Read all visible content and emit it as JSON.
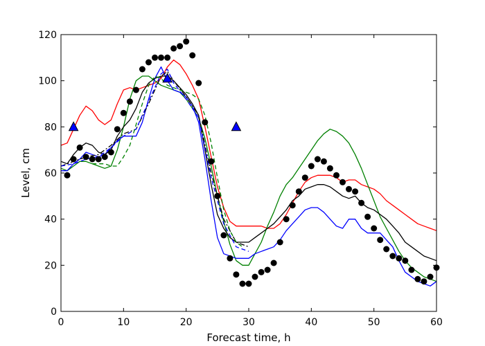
{
  "chart_data": {
    "type": "line",
    "xlabel": "Forecast time, h",
    "ylabel": "Level, cm",
    "xlim": [
      0,
      60
    ],
    "ylim": [
      0,
      120
    ],
    "xticks": [
      "0",
      "10",
      "20",
      "30",
      "40",
      "50",
      "60"
    ],
    "yticks": [
      "0",
      "20",
      "40",
      "60",
      "80",
      "100",
      "120"
    ],
    "grid": false,
    "series": [
      {
        "color": "#ff0000",
        "style": "solid",
        "x": [
          0,
          1,
          2,
          3,
          4,
          5,
          6,
          7,
          8,
          9,
          10,
          11,
          12,
          13,
          14,
          15,
          16,
          17,
          18,
          19,
          20,
          21,
          22,
          23,
          24,
          25,
          26,
          27,
          28,
          29,
          30,
          31,
          32,
          33,
          34,
          35,
          36,
          37,
          38,
          39,
          40,
          41,
          42,
          43,
          44,
          45,
          46,
          47,
          48,
          49,
          50,
          51,
          52,
          53,
          54,
          55,
          56,
          57,
          58,
          59,
          60
        ],
        "y": [
          72,
          73,
          79,
          85,
          89,
          87,
          83,
          81,
          83,
          90,
          96,
          97,
          96,
          97,
          98,
          99,
          101,
          106,
          109,
          107,
          103,
          98,
          92,
          80,
          67,
          54,
          45,
          39,
          37,
          37,
          37,
          37,
          37,
          36,
          36,
          38,
          42,
          47,
          52,
          56,
          58,
          59,
          59,
          59,
          58,
          56,
          57,
          57,
          55,
          54,
          53,
          51,
          48,
          46,
          44,
          42,
          40,
          38,
          37,
          36,
          35
        ]
      },
      {
        "color": "#008000",
        "style": "solid",
        "x": [
          0,
          1,
          2,
          3,
          4,
          5,
          6,
          7,
          8,
          9,
          10,
          11,
          12,
          13,
          14,
          15,
          16,
          17,
          18,
          19,
          20,
          21,
          22,
          23,
          24,
          25,
          26,
          27,
          28,
          29,
          30,
          31,
          32,
          33,
          34,
          35,
          36,
          37,
          38,
          39,
          40,
          41,
          42,
          43,
          44,
          45,
          46,
          47,
          48,
          49,
          50,
          51,
          52,
          53,
          54,
          55,
          56,
          57,
          58,
          59,
          60
        ],
        "y": [
          62,
          61,
          63,
          65,
          65,
          64,
          63,
          62,
          63,
          70,
          80,
          92,
          100,
          102,
          102,
          100,
          98,
          97,
          96,
          95,
          92,
          88,
          84,
          75,
          63,
          50,
          39,
          29,
          22,
          20,
          20,
          25,
          30,
          37,
          43,
          50,
          55,
          58,
          62,
          66,
          70,
          74,
          77,
          79,
          78,
          76,
          73,
          68,
          62,
          55,
          48,
          41,
          36,
          31,
          26,
          22,
          19,
          17,
          15,
          14,
          13
        ]
      },
      {
        "color": "#0000ff",
        "style": "solid",
        "x": [
          0,
          1,
          2,
          3,
          4,
          5,
          6,
          7,
          8,
          9,
          10,
          11,
          12,
          13,
          14,
          15,
          16,
          17,
          18,
          19,
          20,
          21,
          22,
          23,
          24,
          25,
          26,
          27,
          28,
          29,
          30,
          31,
          32,
          33,
          34,
          35,
          36,
          37,
          38,
          39,
          40,
          41,
          42,
          43,
          44,
          45,
          46,
          47,
          48,
          49,
          50,
          51,
          52,
          53,
          54,
          55,
          56,
          57,
          58,
          59,
          60
        ],
        "y": [
          61,
          61,
          64,
          66,
          69,
          68,
          67,
          68,
          71,
          74,
          76,
          76,
          76,
          82,
          92,
          101,
          106,
          100,
          96,
          95,
          93,
          89,
          82,
          66,
          48,
          32,
          25,
          24,
          23,
          23,
          23,
          25,
          26,
          27,
          28,
          31,
          35,
          38,
          41,
          44,
          45,
          45,
          43,
          40,
          37,
          36,
          40,
          40,
          36,
          34,
          34,
          34,
          31,
          28,
          22,
          17,
          15,
          13,
          12,
          11,
          13
        ]
      },
      {
        "color": "#000000",
        "style": "solid",
        "x": [
          0,
          1,
          2,
          3,
          4,
          5,
          6,
          7,
          8,
          9,
          10,
          11,
          12,
          13,
          14,
          15,
          16,
          17,
          18,
          19,
          20,
          21,
          22,
          23,
          24,
          25,
          26,
          27,
          28,
          29,
          30,
          31,
          32,
          33,
          34,
          35,
          36,
          37,
          38,
          39,
          40,
          41,
          42,
          43,
          44,
          45,
          46,
          47,
          48,
          49,
          50,
          51,
          52,
          53,
          54,
          55,
          56,
          57,
          58,
          59,
          60
        ],
        "y": [
          65,
          64,
          68,
          71,
          73,
          72,
          69,
          68,
          70,
          76,
          80,
          83,
          88,
          95,
          99,
          101,
          102,
          102,
          100,
          97,
          94,
          90,
          85,
          70,
          55,
          42,
          36,
          32,
          30,
          30,
          30,
          32,
          34,
          36,
          38,
          41,
          44,
          48,
          50,
          53,
          54,
          55,
          55,
          54,
          52,
          50,
          49,
          50,
          47,
          45,
          44,
          42,
          40,
          37,
          34,
          30,
          28,
          26,
          24,
          23,
          22
        ]
      },
      {
        "color": "#000000",
        "style": "dashdot",
        "x": [
          0,
          2,
          4,
          6,
          8,
          10,
          12,
          14,
          16,
          17,
          18,
          20,
          22,
          24,
          26,
          28,
          30
        ],
        "y": [
          63,
          65,
          67,
          68,
          72,
          77,
          79,
          90,
          102,
          104,
          100,
          93,
          85,
          60,
          40,
          30,
          28
        ]
      },
      {
        "color": "#0000ff",
        "style": "dashed",
        "x": [
          0,
          2,
          4,
          6,
          8,
          10,
          12,
          14,
          16,
          17,
          18,
          20,
          22,
          24,
          26,
          28,
          30
        ],
        "y": [
          63,
          64,
          66,
          67,
          71,
          76,
          79,
          91,
          103,
          105,
          99,
          92,
          84,
          58,
          38,
          28,
          26
        ]
      },
      {
        "color": "#008000",
        "style": "dashed",
        "x": [
          5,
          6,
          7,
          8,
          9,
          10,
          11,
          12,
          13,
          14,
          15,
          16,
          17,
          18,
          19,
          20,
          21,
          22,
          23,
          24,
          25,
          26,
          27,
          28,
          29
        ],
        "y": [
          64,
          64,
          64,
          63,
          63,
          67,
          72,
          81,
          90,
          98,
          102,
          101,
          98,
          97,
          96,
          95,
          94,
          92,
          85,
          73,
          58,
          44,
          35,
          30,
          28
        ]
      }
    ],
    "observations": {
      "color": "#000000",
      "marker": "circle",
      "x": [
        1,
        2,
        3,
        4,
        5,
        6,
        7,
        8,
        9,
        10,
        11,
        12,
        13,
        14,
        15,
        16,
        17,
        18,
        19,
        20,
        21,
        22,
        23,
        24,
        25,
        26,
        27,
        28,
        29,
        30,
        31,
        32,
        33,
        34,
        35,
        36,
        37,
        38,
        39,
        40,
        41,
        42,
        43,
        44,
        45,
        46,
        47,
        48,
        49,
        50,
        51,
        52,
        53,
        54,
        55,
        56,
        57,
        58,
        59,
        60
      ],
      "y": [
        59,
        66,
        71,
        67,
        66,
        66,
        67,
        69,
        79,
        86,
        91,
        96,
        105,
        108,
        110,
        110,
        110,
        114,
        115,
        117,
        111,
        99,
        82,
        65,
        50,
        33,
        23,
        16,
        12,
        12,
        15,
        17,
        18,
        21,
        30,
        40,
        46,
        52,
        58,
        63,
        66,
        65,
        62,
        59,
        56,
        53,
        52,
        47,
        41,
        36,
        31,
        27,
        24,
        23,
        22,
        18,
        14,
        13,
        15,
        19
      ]
    },
    "triangles": {
      "color": "#0000ff",
      "marker": "triangle",
      "x": [
        2,
        17,
        28
      ],
      "y": [
        80,
        101,
        80
      ]
    }
  }
}
